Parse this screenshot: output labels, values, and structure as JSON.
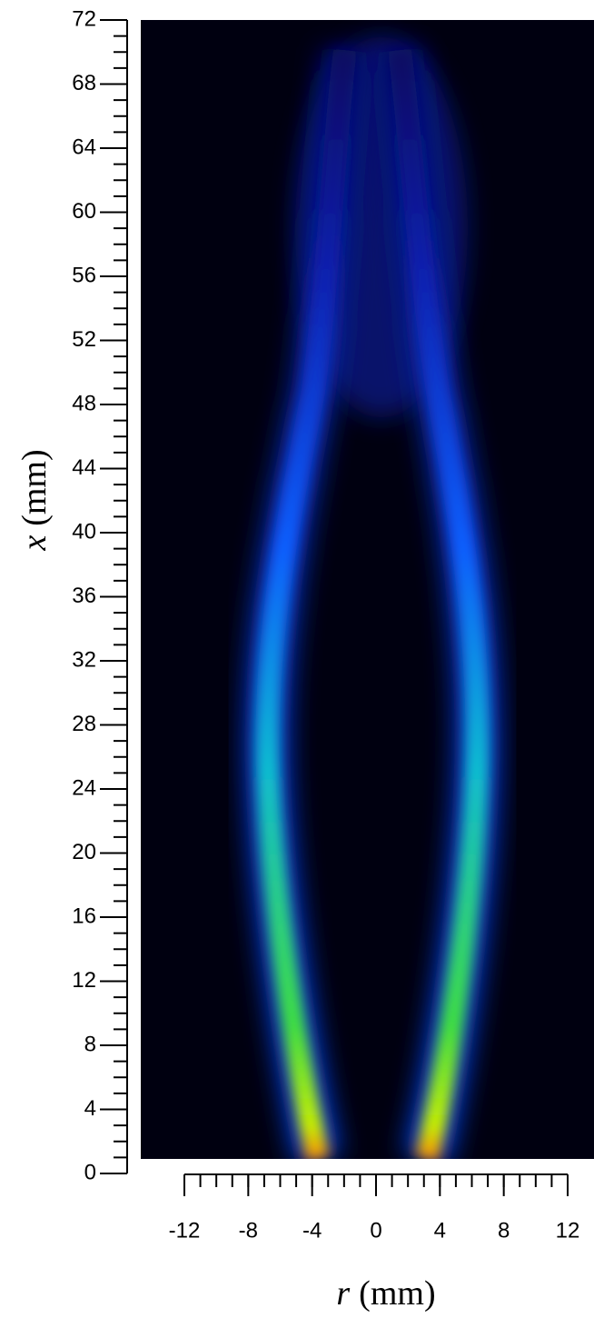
{
  "chart_data": {
    "type": "image",
    "x_label": {
      "symbol": "r",
      "unit": "(mm)"
    },
    "y_label": {
      "symbol": "x",
      "unit": "(mm)"
    },
    "xlim": [
      -12,
      12
    ],
    "xticks": [
      -12,
      -8,
      -4,
      0,
      4,
      8,
      12
    ],
    "ylim": [
      0,
      72
    ],
    "yticks": [
      0,
      4,
      8,
      12,
      16,
      20,
      24,
      28,
      32,
      36,
      40,
      44,
      48,
      52,
      56,
      60,
      64,
      68,
      72
    ],
    "minor_tick_step": 1
  }
}
